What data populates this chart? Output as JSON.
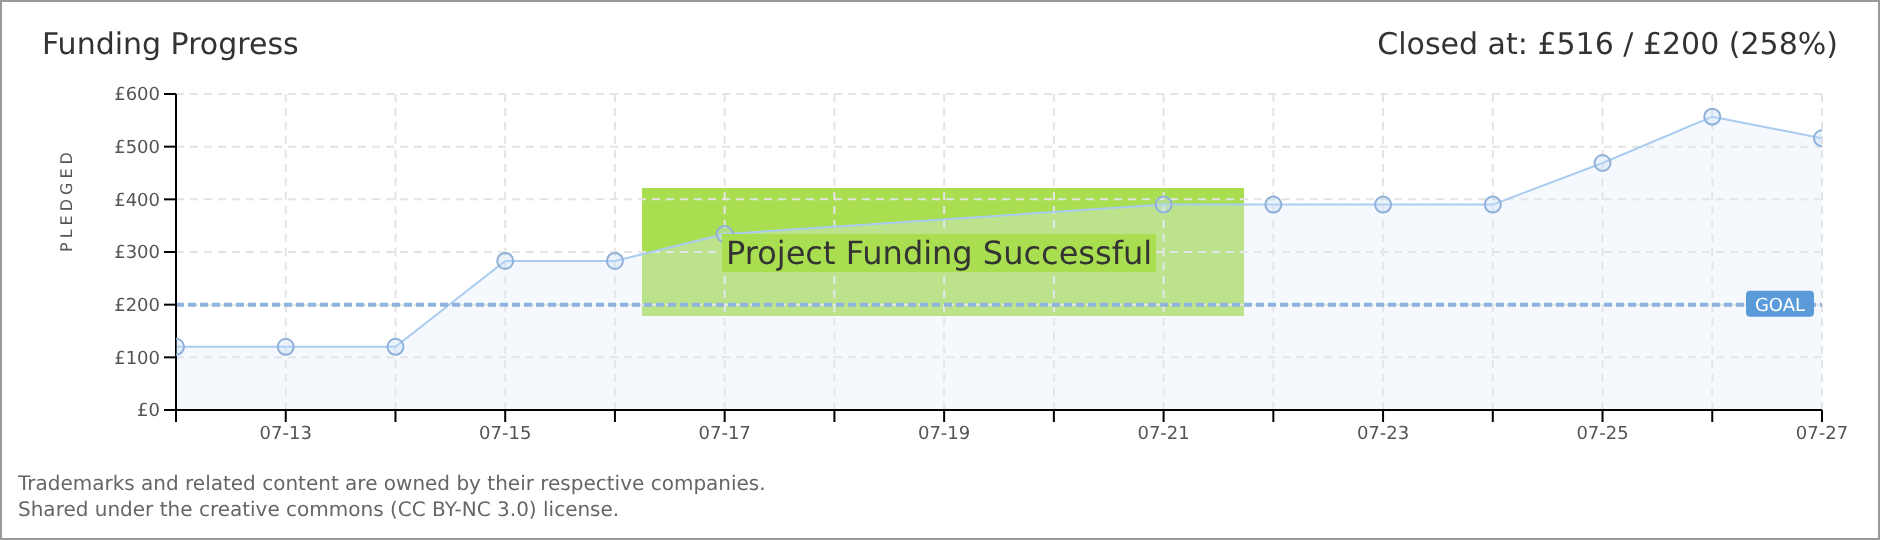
{
  "chart_data": {
    "type": "area",
    "title": "Funding Progress",
    "ylabel": "PLEDGED",
    "categories": [
      null,
      "07-13",
      null,
      "07-15",
      null,
      "07-17",
      null,
      "07-19",
      null,
      "07-21",
      null,
      "07-23",
      null,
      "07-25",
      null,
      "07-27"
    ],
    "series": [
      {
        "color": "#a9cbf0",
        "values": [
          120,
          120,
          120,
          283,
          283,
          334,
          null,
          null,
          null,
          390,
          390,
          390,
          390,
          469,
          557,
          516
        ]
      }
    ],
    "ylim": [
      0,
      600
    ],
    "yticks": [
      {
        "value": 0,
        "label": "£0"
      },
      {
        "value": 100,
        "label": "£100"
      },
      {
        "value": 200,
        "label": "£200"
      },
      {
        "value": 300,
        "label": "£300"
      },
      {
        "value": 400,
        "label": "£400"
      },
      {
        "value": 500,
        "label": "£500"
      },
      {
        "value": 600,
        "label": "£600"
      }
    ],
    "ref_lines": [
      {
        "axis": "y",
        "value": 200,
        "label": "GOAL",
        "color": "#8fb3dc",
        "line_style": "dashed"
      }
    ],
    "grid": true,
    "marker": "circle",
    "annotations": [
      "Closed at: £516 / £200 (258%)",
      "Project Funding Successful",
      "Trademarks and related content are owned by their respective companies.",
      "Shared under the creative commons (CC BY-NC 3.0) license."
    ]
  }
}
